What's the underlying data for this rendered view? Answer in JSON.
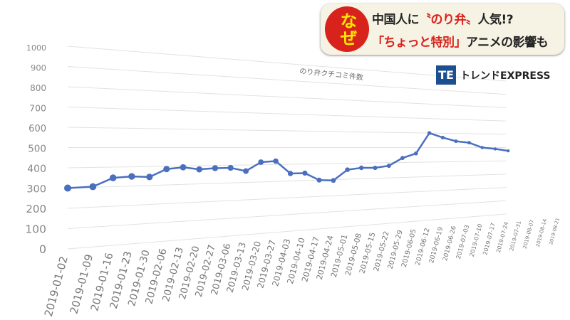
{
  "banner": {
    "badge": "なぜ",
    "line1_a": "中国人に",
    "line1_b": "〝のり弁〟",
    "line1_c": "人気!?",
    "line2_a": "「ちょっと特別」",
    "line2_b": "アニメの影響も"
  },
  "logo": {
    "mark": "TE",
    "text": "トレンドEXPRESS"
  },
  "chart_data": {
    "type": "line",
    "title": "のり弁クチコミ件数",
    "xlabel": "",
    "ylabel": "",
    "ylim": [
      0,
      1000
    ],
    "yticks": [
      0,
      100,
      200,
      300,
      400,
      500,
      600,
      700,
      800,
      900,
      1000
    ],
    "grid": true,
    "color": "#4a6fbe",
    "categories": [
      "2019-01-02",
      "2019-01-09",
      "2019-01-16",
      "2019-01-23",
      "2019-01-30",
      "2019-02-06",
      "2019-02-13",
      "2019-02-20",
      "2019-02-27",
      "2019-03-06",
      "2019-03-13",
      "2019-03-20",
      "2019-03-27",
      "2019-04-03",
      "2019-04-10",
      "2019-04-17",
      "2019-04-24",
      "2019-05-01",
      "2019-05-08",
      "2019-05-15",
      "2019-05-22",
      "2019-05-29",
      "2019-06-05",
      "2019-06-12",
      "2019-06-19",
      "2019-06-26",
      "2019-07-03",
      "2019-07-10",
      "2019-07-17",
      "2019-07-24",
      "2019-07-31",
      "2019-08-07",
      "2019-08-14",
      "2019-08-21"
    ],
    "values": [
      300,
      303,
      345,
      350,
      345,
      385,
      393,
      380,
      385,
      385,
      365,
      415,
      420,
      345,
      345,
      300,
      295,
      360,
      370,
      368,
      380,
      430,
      460,
      600,
      570,
      545,
      535,
      500,
      490,
      475,
      null,
      null,
      null,
      null
    ]
  }
}
